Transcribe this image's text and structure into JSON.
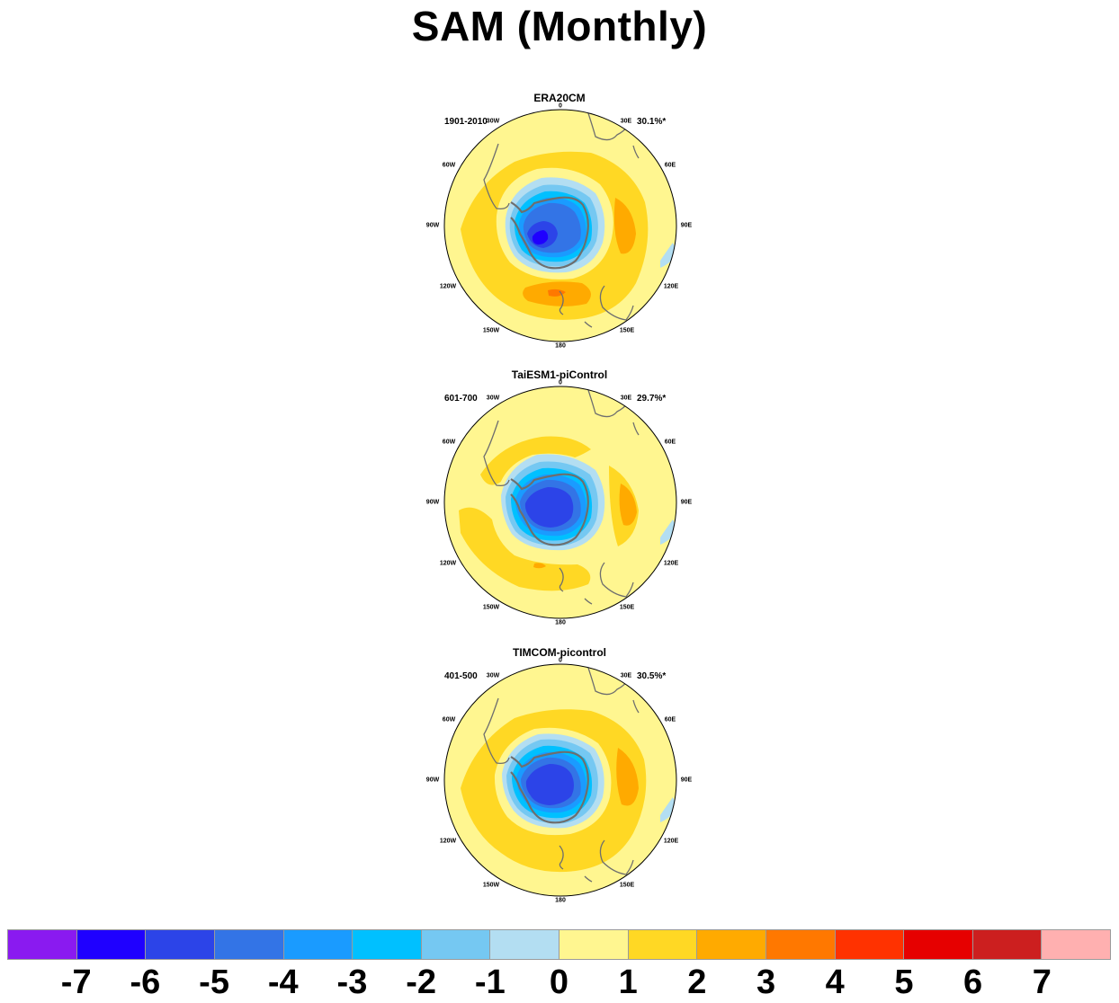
{
  "title": "SAM (Monthly)",
  "panels": [
    {
      "name": "ERA20CM",
      "period": "1901-2010",
      "variance": "30.1%*"
    },
    {
      "name": "TaiESM1-piControl",
      "period": "601-700",
      "variance": "29.7%*"
    },
    {
      "name": "TIMCOM-picontrol",
      "period": "401-500",
      "variance": "30.5%*"
    }
  ],
  "longitude_labels": [
    "0",
    "30E",
    "60E",
    "90E",
    "120E",
    "150E",
    "180",
    "150W",
    "120W",
    "90W",
    "60W",
    "30W"
  ],
  "colorbar": {
    "colors": [
      "#8a1af0",
      "#1f00ff",
      "#2c44e8",
      "#3374e6",
      "#1a9bff",
      "#00c0ff",
      "#75c8f2",
      "#b3def2",
      "#fff690",
      "#ffd824",
      "#ffaa00",
      "#ff7800",
      "#ff3200",
      "#e60000",
      "#cc1f1f",
      "#ffb0b0"
    ],
    "labels": [
      "-7",
      "-6",
      "-5",
      "-4",
      "-3",
      "-2",
      "-1",
      "0",
      "1",
      "2",
      "3",
      "4",
      "5",
      "6",
      "7"
    ]
  }
}
